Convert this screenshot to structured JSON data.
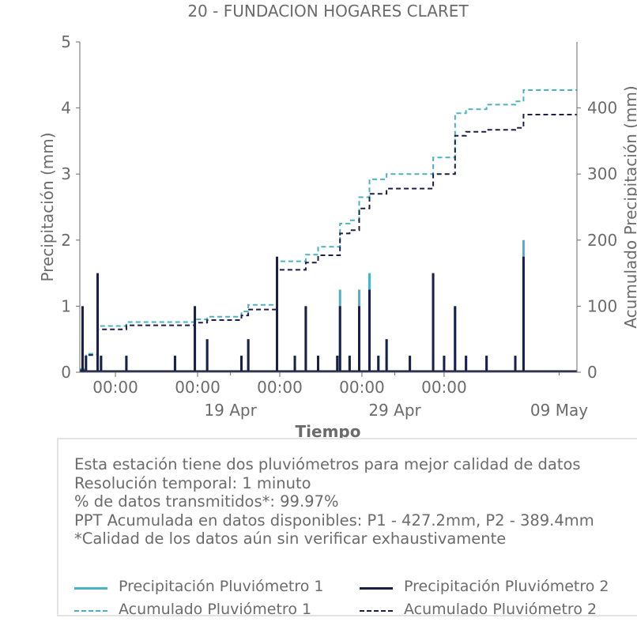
{
  "colors": {
    "p1": "#4bb2c5",
    "p2": "#1b1f47",
    "text": "#6b6b6b",
    "axis": "#6b6b6b"
  },
  "chart_data": {
    "type": "line",
    "title": "20 - FUNDACION HOGARES CLARET",
    "xlabel": "Tiempo",
    "ylabel_left": "Precipitación (mm)",
    "ylabel_right": "Acumulado Precipitación (mm)",
    "x_range_days": [
      "2024-04-09T20:00",
      "2024-05-10T02:00"
    ],
    "ylim_left": [
      0,
      5
    ],
    "ylim_right": [
      0,
      500
    ],
    "yticks_left": [
      "0",
      "1",
      "2",
      "3",
      "4",
      "5"
    ],
    "yticks_right": [
      "0",
      "100",
      "200",
      "300",
      "400"
    ],
    "x_major_ticks": [
      "00:00",
      "00:00",
      "00:00",
      "00:00",
      "00:00"
    ],
    "x_major_tick_dates": [
      "2024-04-12T00:00",
      "2024-04-17T00:00",
      "2024-04-22T00:00",
      "2024-04-27T00:00",
      "2024-05-02T00:00"
    ],
    "x_minor_labels": [
      "19 Apr",
      "29 Apr",
      "09 May"
    ],
    "x_minor_label_dates": [
      "2024-04-19T00:00",
      "2024-04-29T00:00",
      "2024-05-09T00:00"
    ],
    "grid": false,
    "legend_position": "bottom",
    "series": [
      {
        "name": "Precipitación Pluviómetro 1",
        "axis": "left",
        "style": "solid",
        "color": "#4bb2c5",
        "spikes": [
          [
            "2024-04-10T00:00",
            0.5
          ],
          [
            "2024-04-10T05:00",
            0.25
          ],
          [
            "2024-04-10T22:00",
            1.0
          ],
          [
            "2024-04-11T03:00",
            0.25
          ],
          [
            "2024-04-12T16:00",
            0.25
          ],
          [
            "2024-04-15T15:00",
            0.25
          ],
          [
            "2024-04-16T20:00",
            1.0
          ],
          [
            "2024-04-17T14:00",
            0.5
          ],
          [
            "2024-04-19T16:00",
            0.25
          ],
          [
            "2024-04-20T02:00",
            0.5
          ],
          [
            "2024-04-21T20:00",
            1.75
          ],
          [
            "2024-04-22T22:00",
            0.25
          ],
          [
            "2024-04-23T14:00",
            1.0
          ],
          [
            "2024-04-24T08:00",
            0.25
          ],
          [
            "2024-04-25T12:00",
            0.25
          ],
          [
            "2024-04-25T16:00",
            1.25
          ],
          [
            "2024-04-26T06:00",
            0.25
          ],
          [
            "2024-04-26T20:00",
            1.25
          ],
          [
            "2024-04-27T11:00",
            1.5
          ],
          [
            "2024-04-28T00:00",
            0.25
          ],
          [
            "2024-04-28T12:00",
            0.5
          ],
          [
            "2024-04-29T22:00",
            0.25
          ],
          [
            "2024-05-01T08:00",
            1.5
          ],
          [
            "2024-05-02T00:00",
            0.25
          ],
          [
            "2024-05-02T16:00",
            1.0
          ],
          [
            "2024-05-03T08:00",
            0.25
          ],
          [
            "2024-05-04T14:00",
            0.25
          ],
          [
            "2024-05-06T08:00",
            0.25
          ],
          [
            "2024-05-06T20:00",
            2.0
          ]
        ]
      },
      {
        "name": "Precipitación Pluviómetro 2",
        "axis": "left",
        "style": "solid",
        "color": "#1b1f47",
        "spikes": [
          [
            "2024-04-10T00:00",
            1.0
          ],
          [
            "2024-04-10T05:00",
            0.25
          ],
          [
            "2024-04-10T22:00",
            1.5
          ],
          [
            "2024-04-11T03:00",
            0.25
          ],
          [
            "2024-04-12T16:00",
            0.25
          ],
          [
            "2024-04-15T15:00",
            0.25
          ],
          [
            "2024-04-16T20:00",
            1.0
          ],
          [
            "2024-04-17T14:00",
            0.5
          ],
          [
            "2024-04-19T16:00",
            0.25
          ],
          [
            "2024-04-20T02:00",
            0.5
          ],
          [
            "2024-04-21T20:00",
            1.75
          ],
          [
            "2024-04-22T22:00",
            0.25
          ],
          [
            "2024-04-23T14:00",
            1.0
          ],
          [
            "2024-04-24T08:00",
            0.25
          ],
          [
            "2024-04-25T12:00",
            0.25
          ],
          [
            "2024-04-25T16:00",
            1.0
          ],
          [
            "2024-04-26T06:00",
            0.25
          ],
          [
            "2024-04-26T20:00",
            1.0
          ],
          [
            "2024-04-27T11:00",
            1.25
          ],
          [
            "2024-04-28T00:00",
            0.25
          ],
          [
            "2024-04-28T12:00",
            0.5
          ],
          [
            "2024-04-29T22:00",
            0.25
          ],
          [
            "2024-05-01T08:00",
            1.5
          ],
          [
            "2024-05-02T00:00",
            0.25
          ],
          [
            "2024-05-02T16:00",
            1.0
          ],
          [
            "2024-05-03T08:00",
            0.25
          ],
          [
            "2024-05-04T14:00",
            0.25
          ],
          [
            "2024-05-06T08:00",
            0.25
          ],
          [
            "2024-05-06T20:00",
            1.75
          ]
        ]
      },
      {
        "name": "Acumulado Pluviómetro 1",
        "axis": "right",
        "style": "dashed",
        "color": "#4bb2c5",
        "x": [
          "2024-04-09T20:00",
          "2024-04-10T05:00",
          "2024-04-10T22:00",
          "2024-04-12T16:00",
          "2024-04-16T20:00",
          "2024-04-17T14:00",
          "2024-04-19T16:00",
          "2024-04-20T02:00",
          "2024-04-21T20:00",
          "2024-04-23T14:00",
          "2024-04-24T08:00",
          "2024-04-25T16:00",
          "2024-04-26T06:00",
          "2024-04-26T20:00",
          "2024-04-27T11:00",
          "2024-04-28T12:00",
          "2024-05-01T08:00",
          "2024-05-02T16:00",
          "2024-05-03T08:00",
          "2024-05-04T14:00",
          "2024-05-06T08:00",
          "2024-05-06T20:00",
          "2024-05-10T02:00"
        ],
        "y": [
          5,
          28,
          70,
          76,
          80,
          84,
          92,
          102,
          168,
          178,
          190,
          225,
          230,
          265,
          292,
          300,
          325,
          392,
          398,
          405,
          410,
          427,
          427
        ]
      },
      {
        "name": "Acumulado Pluviómetro 2",
        "axis": "right",
        "style": "dashed",
        "color": "#1b1f47",
        "x": [
          "2024-04-09T20:00",
          "2024-04-10T05:00",
          "2024-04-10T22:00",
          "2024-04-12T16:00",
          "2024-04-16T20:00",
          "2024-04-17T14:00",
          "2024-04-19T16:00",
          "2024-04-20T02:00",
          "2024-04-21T20:00",
          "2024-04-23T14:00",
          "2024-04-24T08:00",
          "2024-04-25T16:00",
          "2024-04-26T06:00",
          "2024-04-26T20:00",
          "2024-04-27T11:00",
          "2024-04-28T12:00",
          "2024-05-01T08:00",
          "2024-05-02T16:00",
          "2024-05-03T08:00",
          "2024-05-04T14:00",
          "2024-05-06T08:00",
          "2024-05-06T20:00",
          "2024-05-10T02:00"
        ],
        "y": [
          3,
          26,
          65,
          71,
          75,
          79,
          86,
          95,
          155,
          166,
          177,
          210,
          215,
          248,
          270,
          278,
          300,
          358,
          364,
          367,
          370,
          390,
          390
        ]
      }
    ]
  },
  "info": {
    "lines": [
      "Esta estación tiene dos pluviómetros para mejor calidad de datos",
      "Resolución temporal: 1 minuto",
      "% de datos transmitidos*: 99.97%",
      "PPT Acumulada en datos disponibles: P1 - 427.2mm, P2 - 389.4mm",
      "*Calidad de los datos aún sin verificar exhaustivamente"
    ]
  },
  "legend": [
    {
      "label": "Precipitación Pluviómetro 1",
      "color": "#4bb2c5",
      "style": "solid"
    },
    {
      "label": "Precipitación Pluviómetro 2",
      "color": "#1b1f47",
      "style": "solid"
    },
    {
      "label": "Acumulado Pluviómetro 1",
      "color": "#4bb2c5",
      "style": "dashed"
    },
    {
      "label": "Acumulado Pluviómetro 2",
      "color": "#1b1f47",
      "style": "dashed"
    }
  ]
}
